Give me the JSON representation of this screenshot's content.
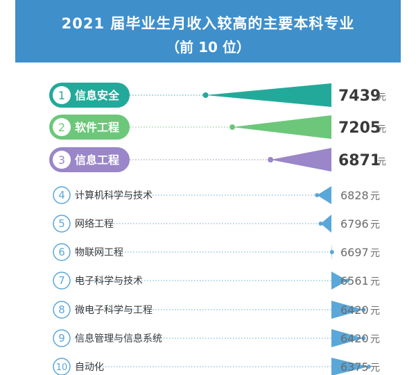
{
  "header": {
    "title_line1": "2021 届毕业生月收入较高的主要本科专业",
    "title_line2": "（前 10 位）"
  },
  "colors": {
    "header_bg": "#3f8fcb",
    "rank1": "#23a99a",
    "rank2": "#6cc77a",
    "rank3": "#9a86c9",
    "other": "#5aa7d9",
    "label_dark": "#3a3a3a",
    "value_gray": "#6b6b6b"
  },
  "chart_data": {
    "type": "bar",
    "title": "2021 届毕业生月收入较高的主要本科专业（前 10 位）",
    "unit": "元",
    "categories": [
      "信息安全",
      "软件工程",
      "信息工程",
      "计算机科学与技术",
      "网络工程",
      "物联网工程",
      "电子科学与技术",
      "微电子科学与工程",
      "信息管理与信息系统",
      "自动化"
    ],
    "ranks": [
      "1",
      "2",
      "3",
      "4",
      "5",
      "6",
      "7",
      "8",
      "9",
      "10"
    ],
    "values": [
      7439,
      7205,
      6871,
      6828,
      6796,
      6697,
      6561,
      6420,
      6420,
      6375
    ],
    "xlim": [
      6000,
      7600
    ]
  }
}
